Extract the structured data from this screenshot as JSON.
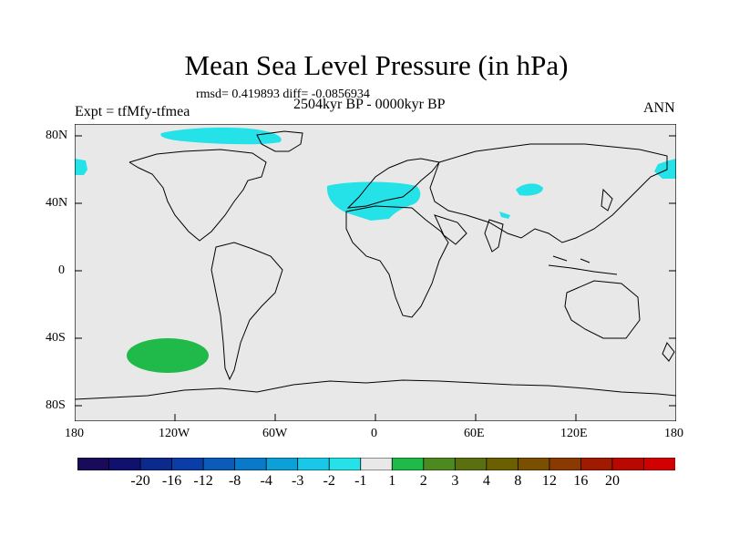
{
  "title": "Mean Sea Level Pressure (in hPa)",
  "stats_line": "rmsd= 0.419893 diff= -0.0856934",
  "period": "2504kyr BP - 0000kyr BP",
  "experiment": "Expt = tfMfy-tfmea",
  "season": "ANN",
  "lat_ticks": [
    "80N",
    "40N",
    "0",
    "40S",
    "80S"
  ],
  "lon_ticks": [
    "180",
    "120W",
    "60W",
    "0",
    "60E",
    "120E",
    "180"
  ],
  "colorbar": {
    "colors": [
      "#1a0a5a",
      "#10106e",
      "#0b2a8c",
      "#0a3ea6",
      "#0b5bb8",
      "#0a7ac8",
      "#0ca0d8",
      "#19c7e8",
      "#25e2e8",
      "#e8e8e8",
      "#1fba4a",
      "#4c8a20",
      "#5a7010",
      "#6a6000",
      "#7a5000",
      "#8a3a00",
      "#a01a00",
      "#b80800",
      "#d20000"
    ],
    "labels": [
      "-20",
      "-16",
      "-12",
      "-8",
      "-4",
      "-3",
      "-2",
      "-1",
      "1",
      "2",
      "3",
      "4",
      "8",
      "12",
      "16",
      "20"
    ]
  },
  "colors": {
    "background": "#e8e8e8",
    "negative_anomaly": "#25e2e8",
    "positive_anomaly": "#1fba4a",
    "coastline": "#000000"
  }
}
